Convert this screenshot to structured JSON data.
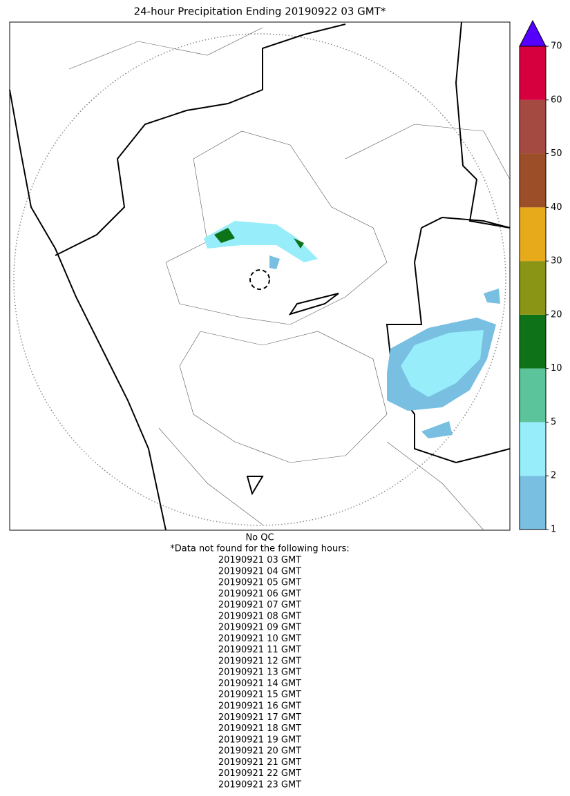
{
  "title": "24-hour Precipitation Ending 20190922 03 GMT*",
  "colorbar": {
    "ticks": [
      1,
      2,
      5,
      10,
      20,
      30,
      40,
      50,
      60,
      70
    ],
    "colors": [
      "#78bfe2",
      "#97edfa",
      "#5cc49a",
      "#0e7218",
      "#8b9515",
      "#e6aa1b",
      "#9c4e28",
      "#a54a40",
      "#d6003f"
    ],
    "extend_color": "#5500ff"
  },
  "footer": {
    "qc": "No QC",
    "missing_heading": "*Data not found for the following hours:",
    "missing_hours": [
      "20190921 03 GMT",
      "20190921 04 GMT",
      "20190921 05 GMT",
      "20190921 06 GMT",
      "20190921 07 GMT",
      "20190921 08 GMT",
      "20190921 09 GMT",
      "20190921 10 GMT",
      "20190921 11 GMT",
      "20190921 12 GMT",
      "20190921 13 GMT",
      "20190921 14 GMT",
      "20190921 15 GMT",
      "20190921 16 GMT",
      "20190921 17 GMT",
      "20190921 18 GMT",
      "20190921 19 GMT",
      "20190921 20 GMT",
      "20190921 21 GMT",
      "20190921 22 GMT",
      "20190921 23 GMT"
    ]
  }
}
